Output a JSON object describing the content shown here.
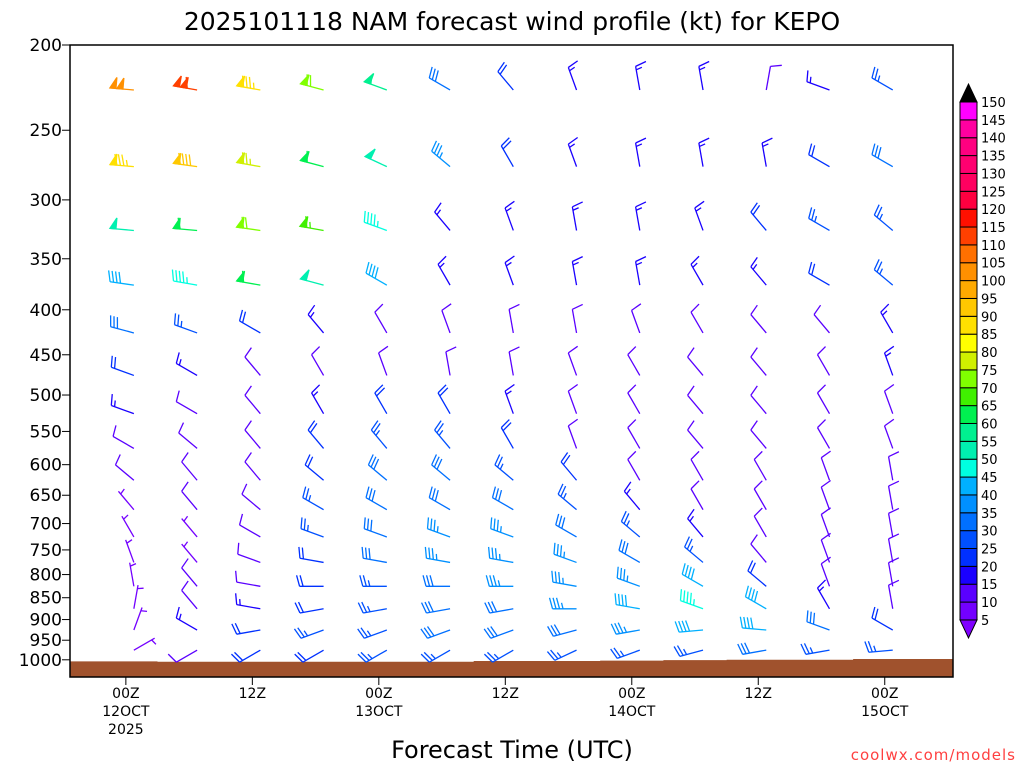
{
  "chart_data": {
    "type": "wind-barb-timeheight",
    "title": "2025101118 NAM forecast wind profile (kt) for KEPO",
    "xlabel": "Forecast Time (UTC)",
    "ylabel": "",
    "credit": "coolwx.com/models",
    "units": "kt",
    "y_scale": "log-pressure",
    "ylim": [
      1045,
      200
    ],
    "xlim_hours": [
      0.7,
      84.5
    ],
    "yticks": [
      200,
      250,
      300,
      350,
      400,
      450,
      500,
      550,
      600,
      650,
      700,
      750,
      800,
      850,
      900,
      950,
      1000
    ],
    "xticks": [
      {
        "hour": 6,
        "lines": [
          "00Z",
          "12OCT",
          "2025"
        ]
      },
      {
        "hour": 18,
        "lines": [
          "12Z"
        ]
      },
      {
        "hour": 30,
        "lines": [
          "00Z",
          "13OCT"
        ]
      },
      {
        "hour": 42,
        "lines": [
          "12Z"
        ]
      },
      {
        "hour": 54,
        "lines": [
          "00Z",
          "14OCT"
        ]
      },
      {
        "hour": 66,
        "lines": [
          "12Z"
        ]
      },
      {
        "hour": 78,
        "lines": [
          "00Z",
          "15OCT"
        ]
      }
    ],
    "hours": [
      0,
      6,
      12,
      18,
      24,
      30,
      36,
      42,
      48,
      54,
      60,
      66,
      72,
      78,
      84
    ],
    "levels": [
      225,
      275,
      325,
      375,
      425,
      475,
      525,
      575,
      625,
      675,
      725,
      775,
      825,
      875,
      925,
      975
    ],
    "speed": [
      [
        95,
        100,
        110,
        85,
        70,
        55,
        30,
        20,
        15,
        15,
        15,
        10,
        15,
        25,
        35
      ],
      [
        70,
        85,
        90,
        75,
        60,
        50,
        35,
        20,
        15,
        15,
        15,
        15,
        20,
        30,
        35
      ],
      [
        40,
        50,
        60,
        70,
        65,
        45,
        15,
        15,
        15,
        15,
        15,
        20,
        25,
        25,
        20
      ],
      [
        35,
        40,
        45,
        60,
        50,
        40,
        15,
        15,
        15,
        15,
        15,
        15,
        20,
        25,
        15
      ],
      [
        30,
        30,
        25,
        20,
        15,
        10,
        10,
        10,
        10,
        10,
        10,
        10,
        10,
        15,
        10
      ],
      [
        20,
        20,
        15,
        10,
        10,
        10,
        10,
        10,
        10,
        10,
        10,
        10,
        10,
        15,
        10
      ],
      [
        15,
        15,
        10,
        10,
        15,
        20,
        20,
        15,
        10,
        10,
        10,
        10,
        10,
        10,
        10
      ],
      [
        10,
        10,
        10,
        10,
        20,
        25,
        25,
        20,
        10,
        10,
        10,
        10,
        10,
        10,
        10
      ],
      [
        10,
        10,
        10,
        10,
        20,
        30,
        30,
        25,
        20,
        10,
        10,
        10,
        10,
        10,
        10
      ],
      [
        10,
        5,
        10,
        10,
        25,
        30,
        30,
        30,
        25,
        15,
        10,
        10,
        10,
        10,
        10
      ],
      [
        10,
        5,
        5,
        10,
        25,
        30,
        35,
        35,
        30,
        25,
        15,
        10,
        10,
        10,
        10
      ],
      [
        10,
        5,
        5,
        10,
        20,
        30,
        35,
        35,
        35,
        30,
        25,
        10,
        10,
        10,
        10
      ],
      [
        10,
        5,
        10,
        10,
        20,
        25,
        30,
        35,
        35,
        35,
        40,
        20,
        10,
        10,
        10
      ],
      [
        5,
        5,
        10,
        15,
        20,
        25,
        30,
        30,
        35,
        40,
        45,
        40,
        15,
        10,
        10
      ],
      [
        5,
        5,
        15,
        20,
        25,
        25,
        30,
        30,
        30,
        35,
        40,
        40,
        30,
        20,
        20
      ],
      [
        5,
        5,
        10,
        20,
        20,
        25,
        25,
        25,
        25,
        25,
        25,
        30,
        25,
        25,
        20
      ]
    ],
    "direction": [
      [
        275,
        275,
        280,
        280,
        285,
        290,
        300,
        320,
        340,
        350,
        350,
        10,
        290,
        300,
        310
      ],
      [
        275,
        275,
        278,
        280,
        285,
        295,
        310,
        330,
        340,
        350,
        350,
        350,
        300,
        300,
        310
      ],
      [
        275,
        275,
        275,
        278,
        280,
        290,
        320,
        340,
        350,
        350,
        340,
        320,
        300,
        310,
        320
      ],
      [
        278,
        278,
        280,
        280,
        285,
        300,
        330,
        340,
        350,
        350,
        330,
        320,
        300,
        310,
        340
      ],
      [
        285,
        285,
        290,
        300,
        320,
        330,
        340,
        350,
        350,
        340,
        330,
        320,
        320,
        330,
        340
      ],
      [
        290,
        290,
        300,
        320,
        330,
        340,
        350,
        350,
        340,
        330,
        320,
        320,
        330,
        340,
        350
      ],
      [
        290,
        290,
        300,
        320,
        330,
        330,
        330,
        340,
        340,
        330,
        320,
        320,
        330,
        340,
        350
      ],
      [
        290,
        300,
        310,
        320,
        320,
        320,
        320,
        330,
        340,
        330,
        320,
        320,
        330,
        340,
        350
      ],
      [
        290,
        310,
        320,
        320,
        310,
        310,
        310,
        310,
        320,
        330,
        330,
        330,
        340,
        350,
        350
      ],
      [
        300,
        320,
        320,
        310,
        300,
        300,
        300,
        300,
        310,
        320,
        330,
        330,
        340,
        350,
        350
      ],
      [
        320,
        330,
        320,
        300,
        290,
        290,
        290,
        290,
        300,
        310,
        320,
        330,
        340,
        350,
        350
      ],
      [
        340,
        340,
        320,
        290,
        280,
        280,
        280,
        280,
        290,
        300,
        310,
        320,
        340,
        350,
        350
      ],
      [
        350,
        350,
        320,
        280,
        270,
        270,
        270,
        270,
        280,
        290,
        300,
        310,
        340,
        350,
        350
      ],
      [
        10,
        10,
        320,
        280,
        260,
        260,
        260,
        260,
        270,
        280,
        290,
        300,
        330,
        350,
        350
      ],
      [
        20,
        20,
        300,
        260,
        250,
        250,
        250,
        250,
        255,
        260,
        265,
        275,
        290,
        300,
        300
      ],
      [
        60,
        60,
        240,
        240,
        240,
        240,
        240,
        240,
        245,
        250,
        255,
        260,
        260,
        265,
        270
      ]
    ],
    "surface_pressure": [
      1004,
      1004,
      1005,
      1005,
      1005,
      1005,
      1005,
      1003,
      1003,
      1002,
      1001,
      1000,
      1000,
      998,
      998
    ],
    "colorbar": {
      "labels": [
        5,
        10,
        15,
        20,
        25,
        30,
        35,
        40,
        45,
        50,
        55,
        60,
        65,
        70,
        75,
        80,
        85,
        90,
        95,
        100,
        105,
        110,
        115,
        120,
        125,
        130,
        135,
        140,
        145,
        150
      ],
      "colors": [
        "#7300ff",
        "#5a00ff",
        "#1a00ff",
        "#0030ff",
        "#0050ff",
        "#0070ff",
        "#0090ff",
        "#00b0ff",
        "#00ffe0",
        "#00f0b0",
        "#00f090",
        "#00f050",
        "#40f000",
        "#80ff00",
        "#d0f000",
        "#ffff00",
        "#ffe000",
        "#ffc800",
        "#ffaa00",
        "#ff9000",
        "#ff7000",
        "#ff4000",
        "#ff1000",
        "#ff0040",
        "#ff0060",
        "#ff0070",
        "#ff0080",
        "#ff00a0",
        "#ff00ff"
      ],
      "under_color": "#8000ff",
      "over_color": "#000000"
    },
    "terrain_color": "#a0522d",
    "credit_color": "#ff4040"
  }
}
